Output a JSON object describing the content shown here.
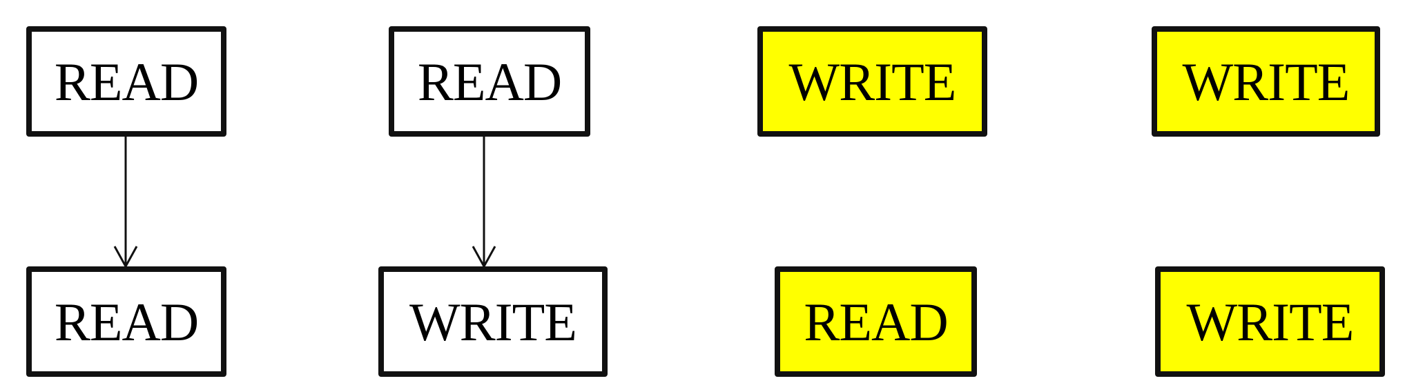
{
  "boxes": [
    {
      "id": "r1c1",
      "label": "READ",
      "fill": "#ffffff"
    },
    {
      "id": "r1c2",
      "label": "READ",
      "fill": "#ffffff"
    },
    {
      "id": "r1c3",
      "label": "WRITE",
      "fill": "#ffff00"
    },
    {
      "id": "r1c4",
      "label": "WRITE",
      "fill": "#ffff00"
    },
    {
      "id": "r2c1",
      "label": "READ",
      "fill": "#ffffff"
    },
    {
      "id": "r2c2",
      "label": "WRITE",
      "fill": "#ffffff"
    },
    {
      "id": "r2c3",
      "label": "READ",
      "fill": "#ffff00"
    },
    {
      "id": "r2c4",
      "label": "WRITE",
      "fill": "#ffff00"
    }
  ],
  "arrows": [
    {
      "from": "r1c1",
      "to": "r2c1"
    },
    {
      "from": "r1c2",
      "to": "r2c2"
    }
  ],
  "colors": {
    "border": "#111111",
    "highlight": "#ffff00",
    "plain": "#ffffff",
    "text": "#000000"
  }
}
